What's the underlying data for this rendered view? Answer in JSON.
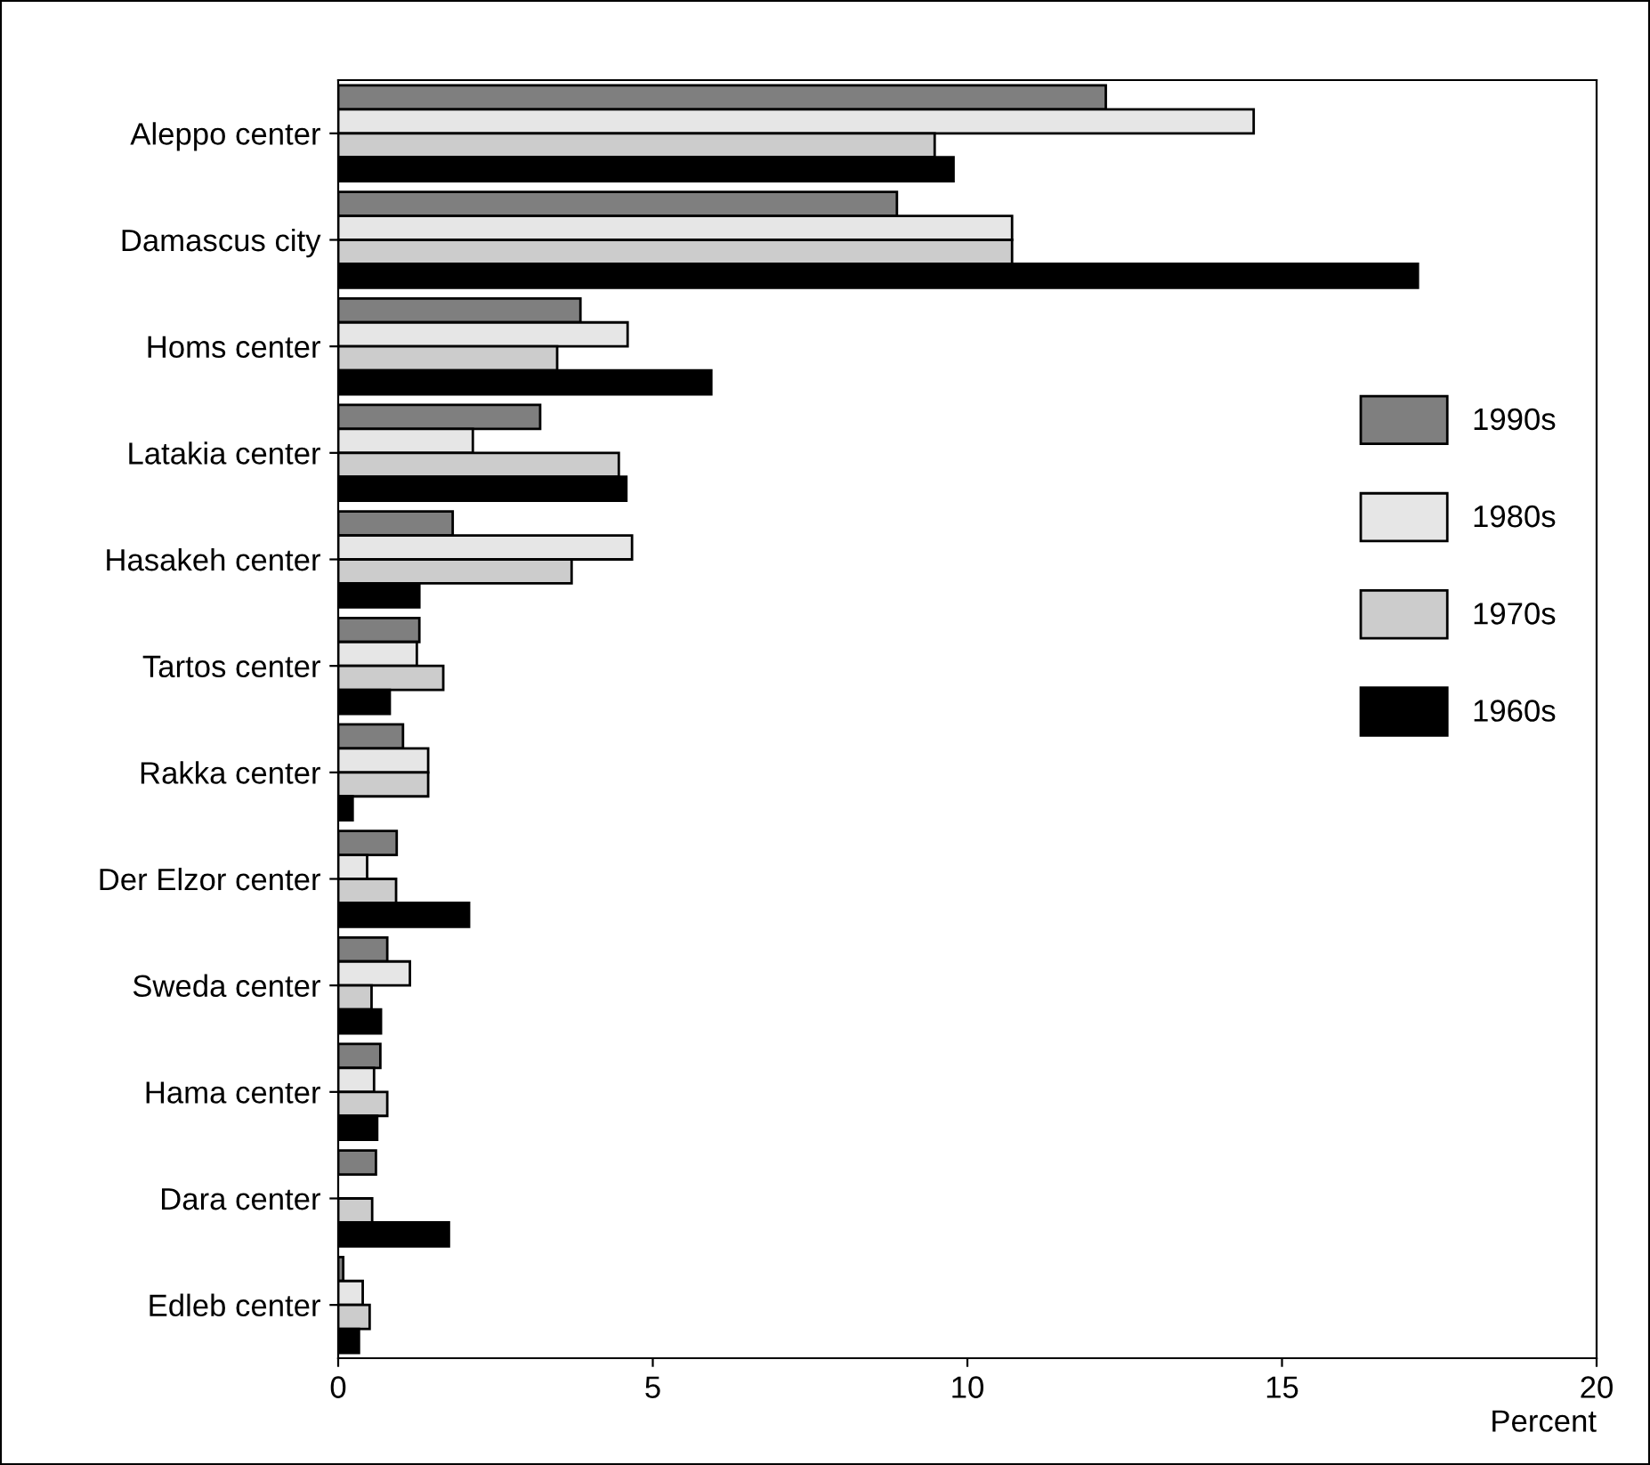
{
  "chart_data": {
    "type": "bar",
    "orientation": "horizontal",
    "xlabel": "Percent",
    "categories": [
      "Aleppo center",
      "Damascus city",
      "Homs center",
      "Latakia center",
      "Hasakeh center",
      "Tartos center",
      "Rakka center",
      "Der Elzor center",
      "Sweda center",
      "Hama center",
      "Dara center",
      "Edleb center"
    ],
    "series": [
      {
        "name": "1990s",
        "color": "#7f7f7f",
        "values": [
          12.2,
          8.88,
          3.85,
          3.21,
          1.82,
          1.29,
          1.03,
          0.93,
          0.78,
          0.67,
          0.6,
          0.08
        ]
      },
      {
        "name": "1980s",
        "color": "#e6e6e6",
        "values": [
          14.55,
          10.71,
          4.6,
          2.14,
          4.67,
          1.25,
          1.43,
          0.46,
          1.14,
          0.57,
          null,
          0.39
        ]
      },
      {
        "name": "1970s",
        "color": "#cccccc",
        "values": [
          9.48,
          10.71,
          3.48,
          4.46,
          3.71,
          1.67,
          1.43,
          0.92,
          0.53,
          0.78,
          0.54,
          0.5
        ]
      },
      {
        "name": "1960s",
        "color": "#000000",
        "values": [
          9.78,
          17.16,
          5.93,
          4.58,
          1.29,
          0.82,
          0.23,
          2.08,
          0.68,
          0.62,
          1.76,
          0.33
        ]
      }
    ],
    "xlim": [
      0,
      20
    ],
    "xticks": [
      0,
      5,
      10,
      15,
      20
    ],
    "grid": false,
    "legend": "right"
  }
}
